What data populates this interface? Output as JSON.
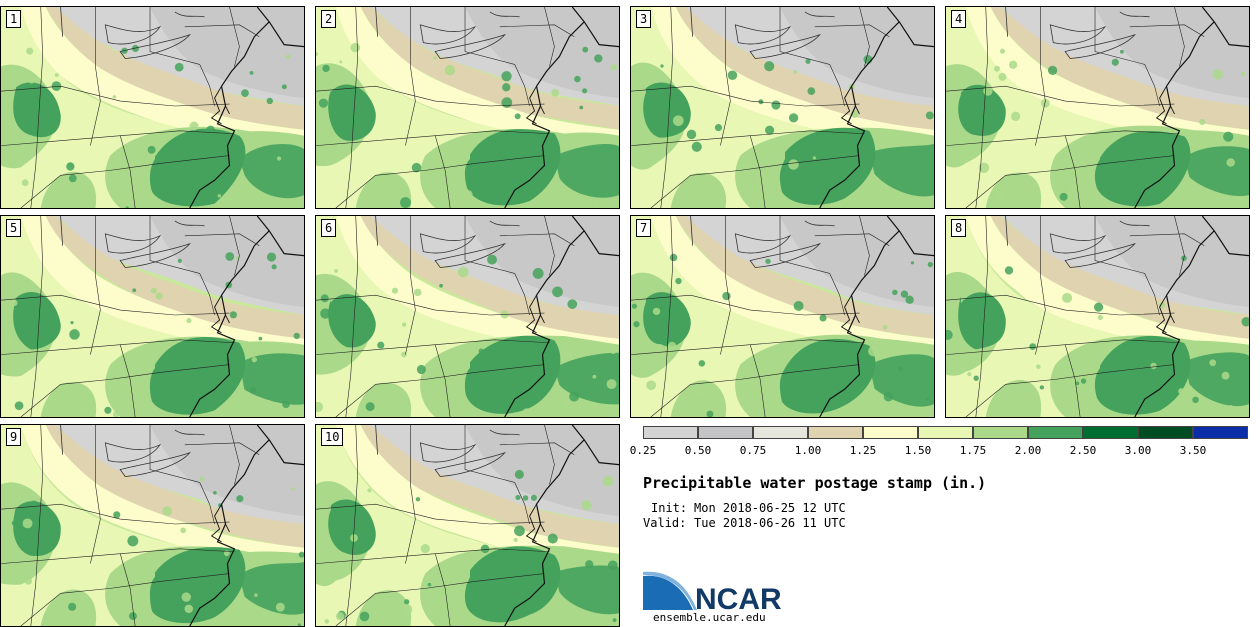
{
  "product": {
    "title": "Precipitable water postage stamp (in.)",
    "init_label": "Init:",
    "init_value": "Mon 2018-06-25 12 UTC",
    "valid_label": "Valid:",
    "valid_value": "Tue 2018-06-26 11 UTC"
  },
  "panels": [
    "1",
    "2",
    "3",
    "4",
    "5",
    "6",
    "7",
    "8",
    "9",
    "10"
  ],
  "colorbar": {
    "ticks": [
      "0.25",
      "0.50",
      "0.75",
      "1.00",
      "1.25",
      "1.50",
      "1.75",
      "2.00",
      "2.50",
      "3.00",
      "3.50"
    ],
    "colors": [
      "#d4d4d4",
      "#c4c4c6",
      "#e6e6dc",
      "#e0d3b0",
      "#fdfdcc",
      "#e9f7b5",
      "#aad98a",
      "#45a25c",
      "#006e31",
      "#004c23",
      "#0a2ea8"
    ]
  },
  "branding": {
    "logo_text": "NCAR",
    "website": "ensemble.ucar.edu",
    "logo_colors": {
      "blue": "#1a6db5",
      "dark": "#123a66"
    }
  }
}
